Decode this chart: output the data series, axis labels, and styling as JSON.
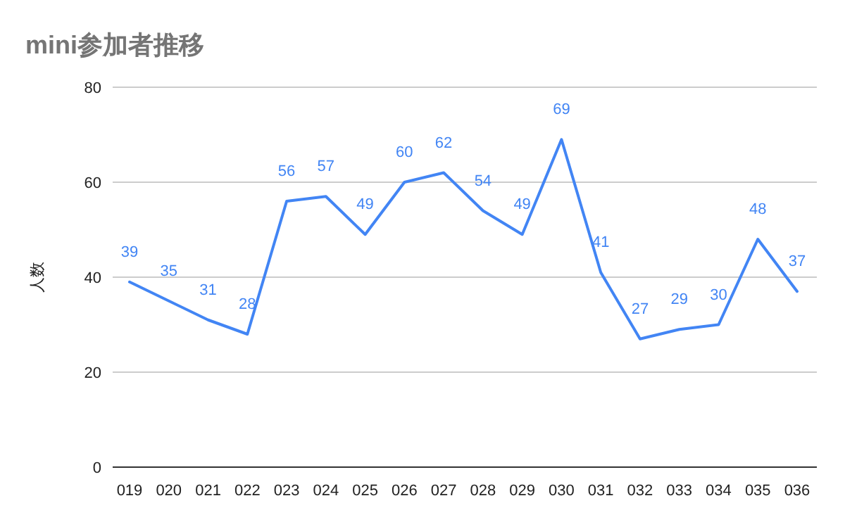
{
  "chart_data": {
    "type": "line",
    "title": "mini参加者推移",
    "ylabel": "人数",
    "categories": [
      "019",
      "020",
      "021",
      "022",
      "023",
      "024",
      "025",
      "026",
      "027",
      "028",
      "029",
      "030",
      "031",
      "032",
      "033",
      "034",
      "035",
      "036"
    ],
    "series": [
      {
        "color": "#4285f4",
        "values": [
          39,
          35,
          31,
          28,
          56,
          57,
          49,
          60,
          62,
          54,
          49,
          69,
          41,
          27,
          29,
          30,
          48,
          37
        ]
      }
    ],
    "ylim": [
      0,
      80
    ],
    "yticks": [
      0,
      20,
      40,
      60,
      80
    ],
    "grid": "y",
    "data_labels": true,
    "marker": "none",
    "line_style": "solid"
  }
}
